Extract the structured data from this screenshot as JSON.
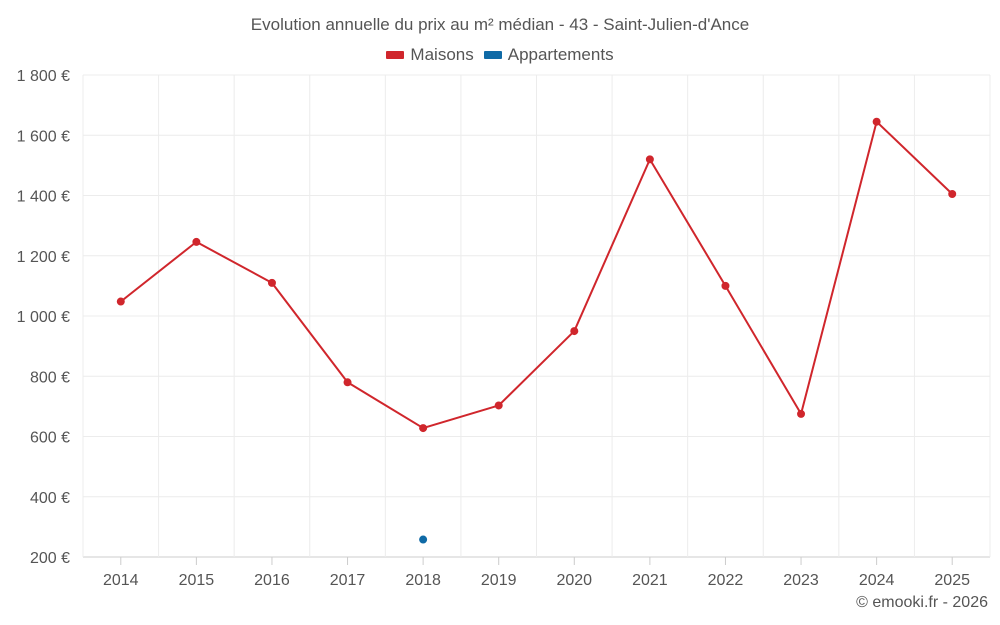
{
  "chart_data": {
    "type": "line",
    "title": "Evolution annuelle du prix au m² médian - 43 - Saint-Julien-d'Ance",
    "categories": [
      "2014",
      "2015",
      "2016",
      "2017",
      "2018",
      "2019",
      "2020",
      "2021",
      "2022",
      "2023",
      "2024",
      "2025"
    ],
    "yticks": [
      "200 €",
      "400 €",
      "600 €",
      "800 €",
      "1 000 €",
      "1 200 €",
      "1 400 €",
      "1 600 €",
      "1 800 €"
    ],
    "ylim": [
      200,
      1800
    ],
    "grid": true,
    "legend_position": "top-center",
    "series": [
      {
        "name": "Maisons",
        "color": "#d0262c",
        "values": [
          1048,
          1246,
          1110,
          780,
          628,
          703,
          950,
          1520,
          1100,
          675,
          1645,
          1405
        ]
      },
      {
        "name": "Appartements",
        "color": "#0f6aa6",
        "values": [
          null,
          null,
          null,
          null,
          258,
          null,
          null,
          null,
          null,
          null,
          null,
          null
        ]
      }
    ]
  },
  "credit": "© emooki.fr - 2026"
}
